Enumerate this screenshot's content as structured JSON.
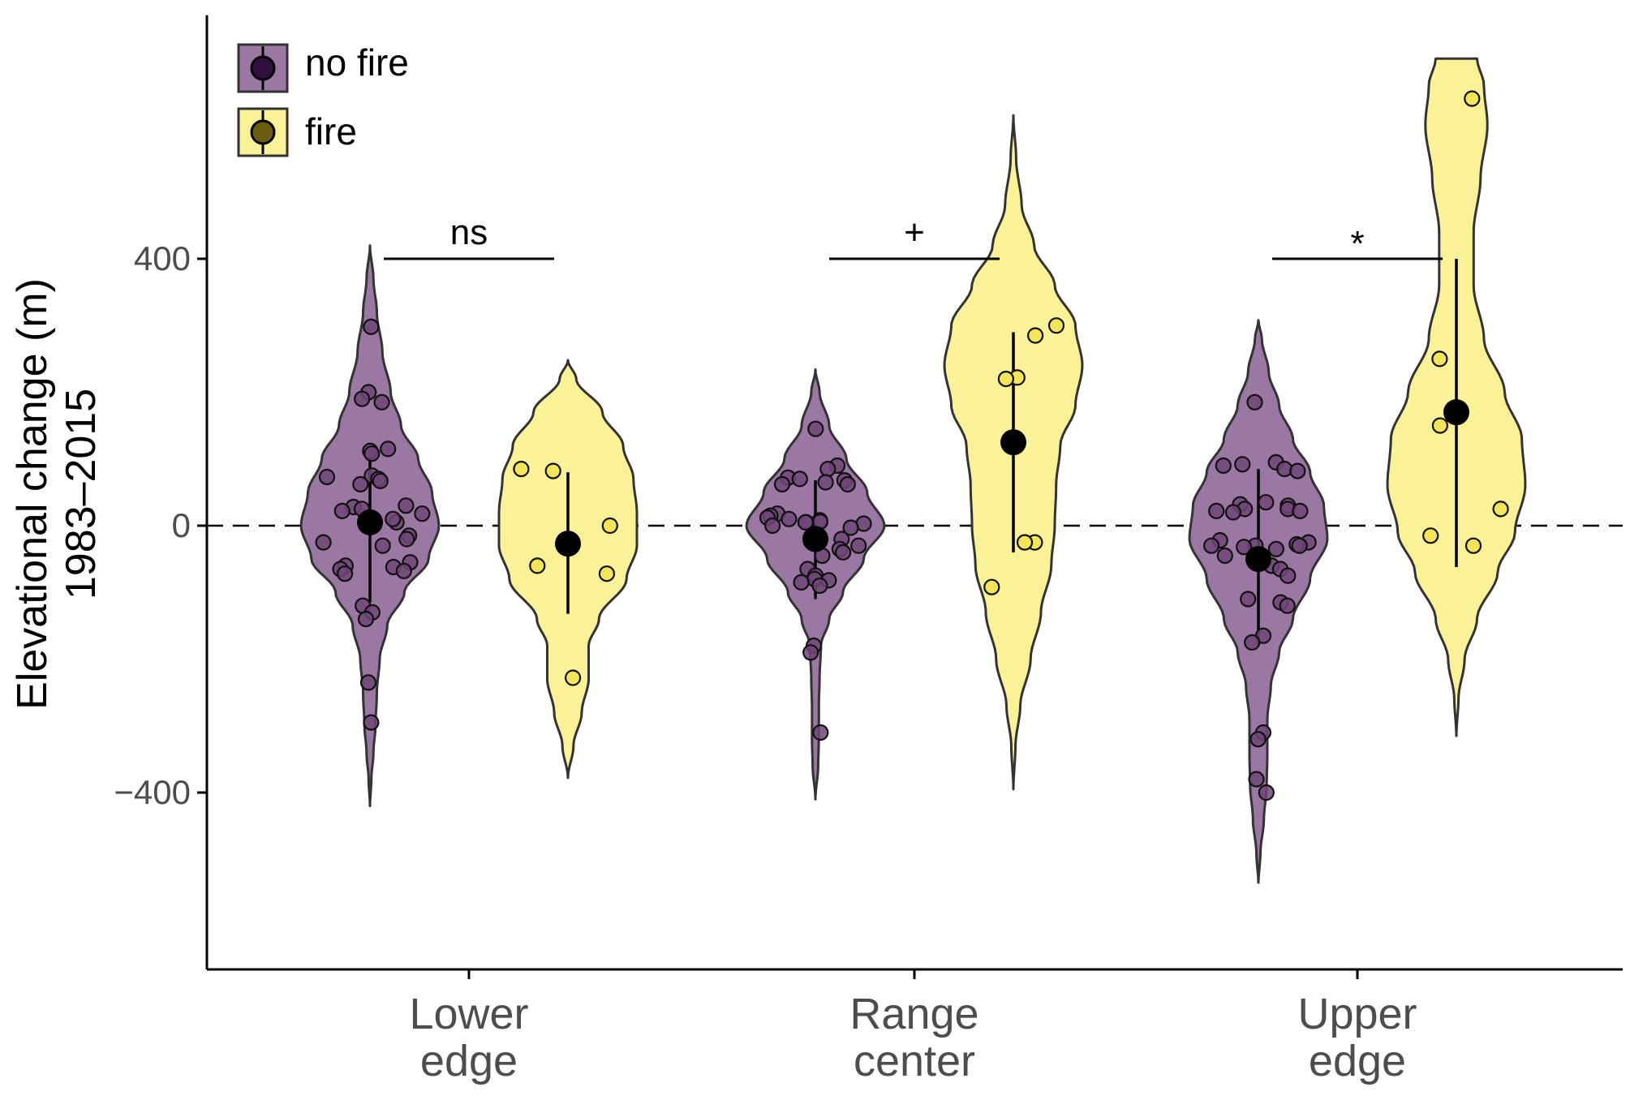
{
  "chart_data": {
    "type": "violin",
    "ylabel": [
      "Elevational change (m)",
      "1983–2015"
    ],
    "ylim": [
      -665,
      765
    ],
    "yticks": [
      -400,
      0,
      400
    ],
    "ytick_labels": [
      "−400",
      "0",
      "400"
    ],
    "reference_line": 0,
    "categories": [
      {
        "lines": [
          "Lower",
          "edge"
        ]
      },
      {
        "lines": [
          "Range",
          "center"
        ]
      },
      {
        "lines": [
          "Upper",
          "edge"
        ]
      }
    ],
    "legend": {
      "position": "top-left",
      "entries": [
        {
          "label": "no fire",
          "group": "nofire"
        },
        {
          "label": "fire",
          "group": "fire"
        }
      ]
    },
    "colors": {
      "nofire_fill": "#9b77a3",
      "nofire_point": "#6e4777",
      "fire_fill": "#fbf297",
      "fire_point": "#f4e558",
      "outline": "#333333",
      "mean": "#000000"
    },
    "significance": [
      {
        "category": 0,
        "y": 400,
        "label": "ns"
      },
      {
        "category": 1,
        "y": 400,
        "label": "+"
      },
      {
        "category": 2,
        "y": 400,
        "label": "*"
      }
    ],
    "series": [
      {
        "category": 0,
        "group": "nofire",
        "mean": 5,
        "interval": [
          -115,
          112
        ],
        "violin": {
          "min": -420,
          "max": 420,
          "profile": [
            [
              -420,
              0
            ],
            [
              -380,
              0.02
            ],
            [
              -340,
              0.05
            ],
            [
              -300,
              0.08
            ],
            [
              -250,
              0.1
            ],
            [
              -200,
              0.14
            ],
            [
              -150,
              0.25
            ],
            [
              -100,
              0.5
            ],
            [
              -50,
              0.85
            ],
            [
              0,
              1.0
            ],
            [
              50,
              0.9
            ],
            [
              100,
              0.7
            ],
            [
              150,
              0.45
            ],
            [
              200,
              0.3
            ],
            [
              260,
              0.18
            ],
            [
              320,
              0.1
            ],
            [
              370,
              0.05
            ],
            [
              420,
              0
            ]
          ]
        },
        "points": [
          5,
          298,
          200,
          190,
          185,
          115,
          112,
          108,
          75,
          73,
          70,
          67,
          62,
          30,
          28,
          25,
          22,
          18,
          10,
          -15,
          -20,
          -25,
          -30,
          -55,
          -60,
          -62,
          -65,
          -68,
          -72,
          -120,
          -130,
          -140,
          -235,
          -295
        ]
      },
      {
        "category": 0,
        "group": "fire",
        "mean": -27,
        "interval": [
          -132,
          80
        ],
        "violin": {
          "min": -378,
          "max": 248,
          "profile": [
            [
              -378,
              0
            ],
            [
              -330,
              0.08
            ],
            [
              -280,
              0.2
            ],
            [
              -230,
              0.3
            ],
            [
              -180,
              0.3
            ],
            [
              -140,
              0.45
            ],
            [
              -80,
              0.85
            ],
            [
              -30,
              1.0
            ],
            [
              20,
              1.0
            ],
            [
              70,
              0.95
            ],
            [
              120,
              0.8
            ],
            [
              170,
              0.5
            ],
            [
              220,
              0.12
            ],
            [
              248,
              0
            ]
          ]
        },
        "points": [
          85,
          82,
          0,
          -60,
          -72,
          -228
        ]
      },
      {
        "category": 1,
        "group": "nofire",
        "mean": -20,
        "interval": [
          -110,
          68
        ],
        "violin": {
          "min": -410,
          "max": 234,
          "profile": [
            [
              -410,
              0
            ],
            [
              -360,
              0.04
            ],
            [
              -320,
              0.05
            ],
            [
              -270,
              0.05
            ],
            [
              -230,
              0.06
            ],
            [
              -180,
              0.08
            ],
            [
              -140,
              0.2
            ],
            [
              -100,
              0.4
            ],
            [
              -50,
              0.7
            ],
            [
              0,
              1.0
            ],
            [
              50,
              0.75
            ],
            [
              100,
              0.45
            ],
            [
              150,
              0.2
            ],
            [
              200,
              0.06
            ],
            [
              234,
              0
            ]
          ]
        },
        "points": [
          145,
          90,
          85,
          72,
          70,
          68,
          65,
          62,
          62,
          18,
          15,
          12,
          10,
          8,
          6,
          5,
          5,
          3,
          0,
          -3,
          -20,
          -30,
          -35,
          -40,
          -45,
          -65,
          -75,
          -80,
          -82,
          -85,
          -90,
          -180,
          -190,
          -310
        ]
      },
      {
        "category": 1,
        "group": "fire",
        "mean": 125,
        "interval": [
          -40,
          290
        ],
        "violin": {
          "min": -395,
          "max": 615,
          "profile": [
            [
              -395,
              0
            ],
            [
              -330,
              0.03
            ],
            [
              -270,
              0.1
            ],
            [
              -200,
              0.25
            ],
            [
              -130,
              0.4
            ],
            [
              -60,
              0.55
            ],
            [
              0,
              0.6
            ],
            [
              60,
              0.62
            ],
            [
              120,
              0.68
            ],
            [
              180,
              0.9
            ],
            [
              240,
              1.0
            ],
            [
              300,
              0.9
            ],
            [
              360,
              0.6
            ],
            [
              420,
              0.3
            ],
            [
              480,
              0.12
            ],
            [
              550,
              0.04
            ],
            [
              615,
              0
            ]
          ]
        },
        "points": [
          300,
          285,
          222,
          220,
          -25,
          -25,
          -92
        ]
      },
      {
        "category": 2,
        "group": "nofire",
        "mean": -50,
        "interval": [
          -180,
          85
        ],
        "violin": {
          "min": -535,
          "max": 308,
          "profile": [
            [
              -535,
              0
            ],
            [
              -490,
              0.03
            ],
            [
              -440,
              0.08
            ],
            [
              -390,
              0.12
            ],
            [
              -340,
              0.13
            ],
            [
              -290,
              0.13
            ],
            [
              -240,
              0.18
            ],
            [
              -190,
              0.3
            ],
            [
              -140,
              0.5
            ],
            [
              -80,
              0.75
            ],
            [
              -20,
              1.0
            ],
            [
              30,
              0.95
            ],
            [
              80,
              0.75
            ],
            [
              130,
              0.5
            ],
            [
              180,
              0.3
            ],
            [
              230,
              0.15
            ],
            [
              280,
              0.05
            ],
            [
              308,
              0
            ]
          ]
        },
        "points": [
          185,
          95,
          92,
          90,
          85,
          82,
          35,
          32,
          30,
          25,
          25,
          22,
          22,
          20,
          -22,
          -25,
          -28,
          -30,
          -30,
          -30,
          -32,
          -35,
          -45,
          -60,
          -65,
          -75,
          -110,
          -115,
          -120,
          -165,
          -175,
          -310,
          -320,
          -380,
          -400
        ]
      },
      {
        "category": 2,
        "group": "fire",
        "mean": 170,
        "interval": [
          -62,
          400
        ],
        "violin": {
          "min": -315,
          "max": 700,
          "profile": [
            [
              -315,
              0
            ],
            [
              -260,
              0.03
            ],
            [
              -200,
              0.12
            ],
            [
              -140,
              0.3
            ],
            [
              -70,
              0.6
            ],
            [
              -10,
              0.85
            ],
            [
              60,
              1.0
            ],
            [
              130,
              0.95
            ],
            [
              200,
              0.7
            ],
            [
              280,
              0.4
            ],
            [
              360,
              0.25
            ],
            [
              440,
              0.25
            ],
            [
              520,
              0.35
            ],
            [
              600,
              0.45
            ],
            [
              660,
              0.4
            ],
            [
              700,
              0.3
            ]
          ]
        },
        "points": [
          640,
          250,
          150,
          25,
          -15,
          -30
        ]
      }
    ]
  }
}
